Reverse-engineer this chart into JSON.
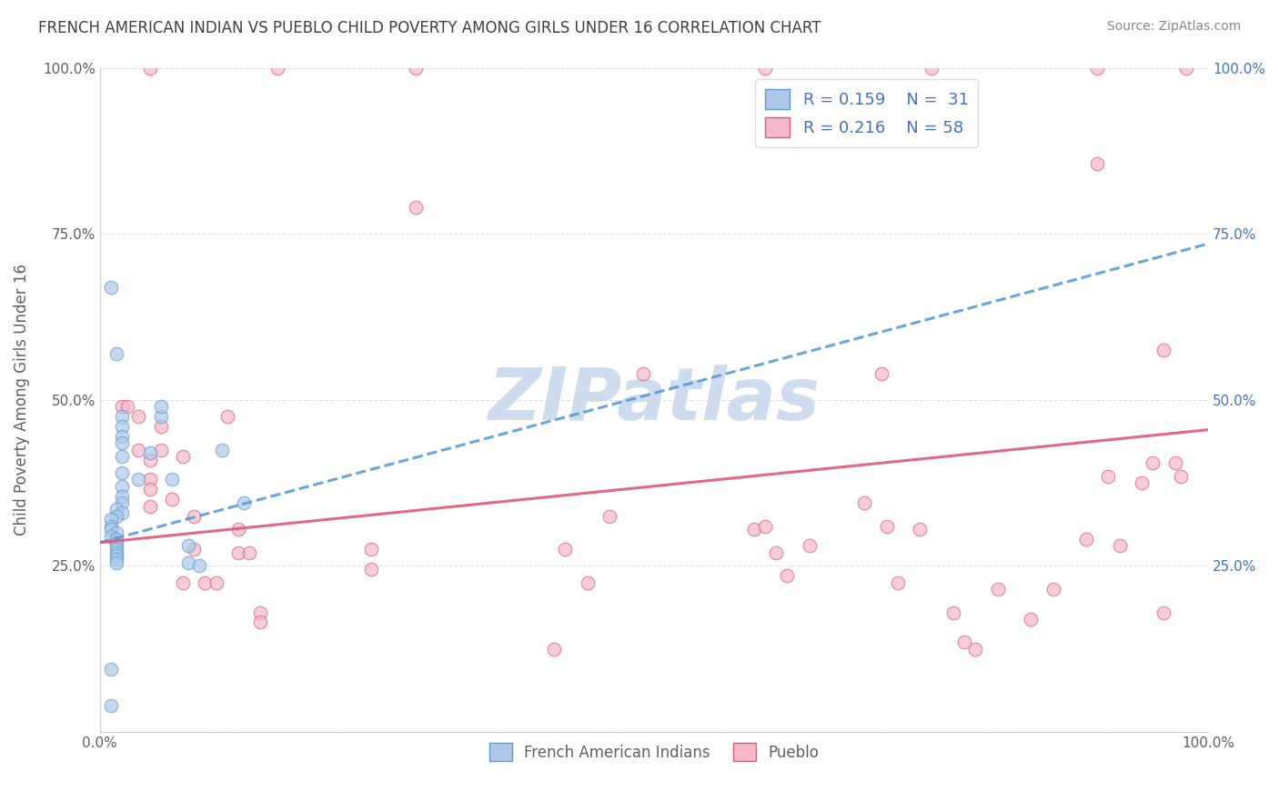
{
  "title": "FRENCH AMERICAN INDIAN VS PUEBLO CHILD POVERTY AMONG GIRLS UNDER 16 CORRELATION CHART",
  "source": "Source: ZipAtlas.com",
  "ylabel": "Child Poverty Among Girls Under 16",
  "blue_color": "#adc8e8",
  "pink_color": "#f5b8ca",
  "blue_line_color": "#5b9bd5",
  "pink_line_color": "#e05878",
  "blue_edge_color": "#5b9bd5",
  "pink_edge_color": "#e05878",
  "watermark_text": "ZIPatlas",
  "watermark_color": "#cddcee",
  "grid_color": "#d8d8d8",
  "title_color": "#404040",
  "source_color": "#888888",
  "label_color_blue": "#4472c4",
  "label_color_grey": "#606060",
  "blue_scatter": [
    [
      0.01,
      0.67
    ],
    [
      0.015,
      0.57
    ],
    [
      0.02,
      0.475
    ],
    [
      0.02,
      0.46
    ],
    [
      0.02,
      0.445
    ],
    [
      0.02,
      0.435
    ],
    [
      0.02,
      0.415
    ],
    [
      0.02,
      0.39
    ],
    [
      0.02,
      0.37
    ],
    [
      0.02,
      0.355
    ],
    [
      0.02,
      0.345
    ],
    [
      0.015,
      0.335
    ],
    [
      0.02,
      0.33
    ],
    [
      0.015,
      0.325
    ],
    [
      0.01,
      0.32
    ],
    [
      0.01,
      0.31
    ],
    [
      0.01,
      0.305
    ],
    [
      0.015,
      0.3
    ],
    [
      0.01,
      0.295
    ],
    [
      0.015,
      0.29
    ],
    [
      0.015,
      0.285
    ],
    [
      0.015,
      0.28
    ],
    [
      0.015,
      0.275
    ],
    [
      0.015,
      0.27
    ],
    [
      0.015,
      0.265
    ],
    [
      0.015,
      0.26
    ],
    [
      0.015,
      0.255
    ],
    [
      0.035,
      0.38
    ],
    [
      0.045,
      0.42
    ],
    [
      0.055,
      0.475
    ],
    [
      0.055,
      0.49
    ],
    [
      0.065,
      0.38
    ],
    [
      0.08,
      0.28
    ],
    [
      0.08,
      0.255
    ],
    [
      0.09,
      0.25
    ],
    [
      0.11,
      0.425
    ],
    [
      0.13,
      0.345
    ],
    [
      0.01,
      0.095
    ],
    [
      0.01,
      0.04
    ]
  ],
  "pink_scatter": [
    [
      0.045,
      1.0
    ],
    [
      0.16,
      1.0
    ],
    [
      0.285,
      1.0
    ],
    [
      0.6,
      1.0
    ],
    [
      0.75,
      1.0
    ],
    [
      0.9,
      1.0
    ],
    [
      0.98,
      1.0
    ],
    [
      0.285,
      0.79
    ],
    [
      0.49,
      0.54
    ],
    [
      0.705,
      0.54
    ],
    [
      0.9,
      0.855
    ],
    [
      0.96,
      0.575
    ],
    [
      0.02,
      0.49
    ],
    [
      0.025,
      0.49
    ],
    [
      0.035,
      0.475
    ],
    [
      0.035,
      0.425
    ],
    [
      0.045,
      0.41
    ],
    [
      0.045,
      0.38
    ],
    [
      0.045,
      0.365
    ],
    [
      0.045,
      0.34
    ],
    [
      0.055,
      0.46
    ],
    [
      0.055,
      0.425
    ],
    [
      0.065,
      0.35
    ],
    [
      0.075,
      0.415
    ],
    [
      0.075,
      0.225
    ],
    [
      0.085,
      0.325
    ],
    [
      0.085,
      0.275
    ],
    [
      0.095,
      0.225
    ],
    [
      0.105,
      0.225
    ],
    [
      0.115,
      0.475
    ],
    [
      0.125,
      0.305
    ],
    [
      0.125,
      0.27
    ],
    [
      0.135,
      0.27
    ],
    [
      0.145,
      0.18
    ],
    [
      0.145,
      0.165
    ],
    [
      0.245,
      0.275
    ],
    [
      0.245,
      0.245
    ],
    [
      0.41,
      0.125
    ],
    [
      0.42,
      0.275
    ],
    [
      0.44,
      0.225
    ],
    [
      0.46,
      0.325
    ],
    [
      0.59,
      0.305
    ],
    [
      0.6,
      0.31
    ],
    [
      0.61,
      0.27
    ],
    [
      0.62,
      0.235
    ],
    [
      0.64,
      0.28
    ],
    [
      0.69,
      0.345
    ],
    [
      0.71,
      0.31
    ],
    [
      0.72,
      0.225
    ],
    [
      0.74,
      0.305
    ],
    [
      0.77,
      0.18
    ],
    [
      0.78,
      0.135
    ],
    [
      0.79,
      0.125
    ],
    [
      0.81,
      0.215
    ],
    [
      0.84,
      0.17
    ],
    [
      0.86,
      0.215
    ],
    [
      0.89,
      0.29
    ],
    [
      0.91,
      0.385
    ],
    [
      0.92,
      0.28
    ],
    [
      0.94,
      0.375
    ],
    [
      0.95,
      0.405
    ],
    [
      0.96,
      0.18
    ],
    [
      0.97,
      0.405
    ],
    [
      0.975,
      0.385
    ]
  ],
  "blue_regr": [
    0.0,
    1.0,
    0.285,
    0.735
  ],
  "pink_regr": [
    0.0,
    1.0,
    0.285,
    0.455
  ],
  "xlim": [
    0.0,
    1.0
  ],
  "ylim": [
    0.0,
    1.0
  ],
  "xticks": [
    0.0,
    1.0
  ],
  "xtick_labels": [
    "0.0%",
    "100.0%"
  ],
  "yticks_left": [
    0.0,
    0.25,
    0.5,
    0.75,
    1.0
  ],
  "ytick_labels_left": [
    "",
    "25.0%",
    "50.0%",
    "75.0%",
    "100.0%"
  ],
  "yticks_right": [
    0.25,
    0.5,
    0.75,
    1.0
  ],
  "ytick_labels_right": [
    "25.0%",
    "50.0%",
    "75.0%",
    "100.0%"
  ]
}
